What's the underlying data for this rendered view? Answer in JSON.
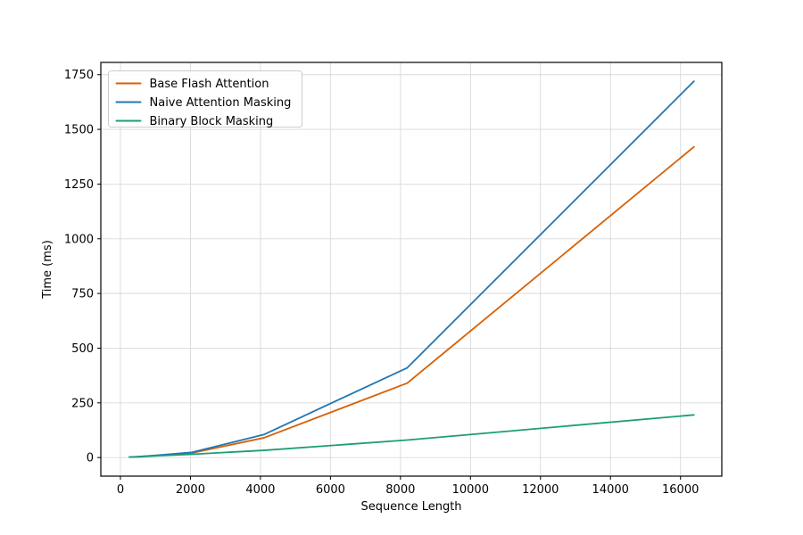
{
  "chart_data": {
    "type": "line",
    "title": "",
    "xlabel": "Sequence Length",
    "ylabel": "Time (ms)",
    "x": [
      256,
      512,
      1024,
      2048,
      4096,
      8192,
      16384
    ],
    "series": [
      {
        "name": "Base Flash Attention",
        "color": "#d95f02",
        "values": [
          2,
          4,
          9,
          21,
          90,
          340,
          1420
        ]
      },
      {
        "name": "Naive Attention Masking",
        "color": "#1f77b4",
        "values": [
          2,
          4,
          10,
          24,
          105,
          410,
          1720
        ]
      },
      {
        "name": "Binary Block Masking",
        "color": "#1b9e77",
        "values": [
          2,
          3,
          8,
          15,
          33,
          80,
          195
        ]
      }
    ],
    "xticks": [
      0,
      2000,
      4000,
      6000,
      8000,
      10000,
      12000,
      14000,
      16000
    ],
    "yticks": [
      0,
      250,
      500,
      750,
      1000,
      1250,
      1500,
      1750
    ],
    "xlim": [
      -560,
      17180
    ],
    "ylim": [
      -85,
      1806
    ],
    "grid": true,
    "grid_color": "#d9d9d9",
    "spine_color": "#000000",
    "background": "#ffffff",
    "legend_position": "upper-left",
    "line_width": 1.8
  }
}
